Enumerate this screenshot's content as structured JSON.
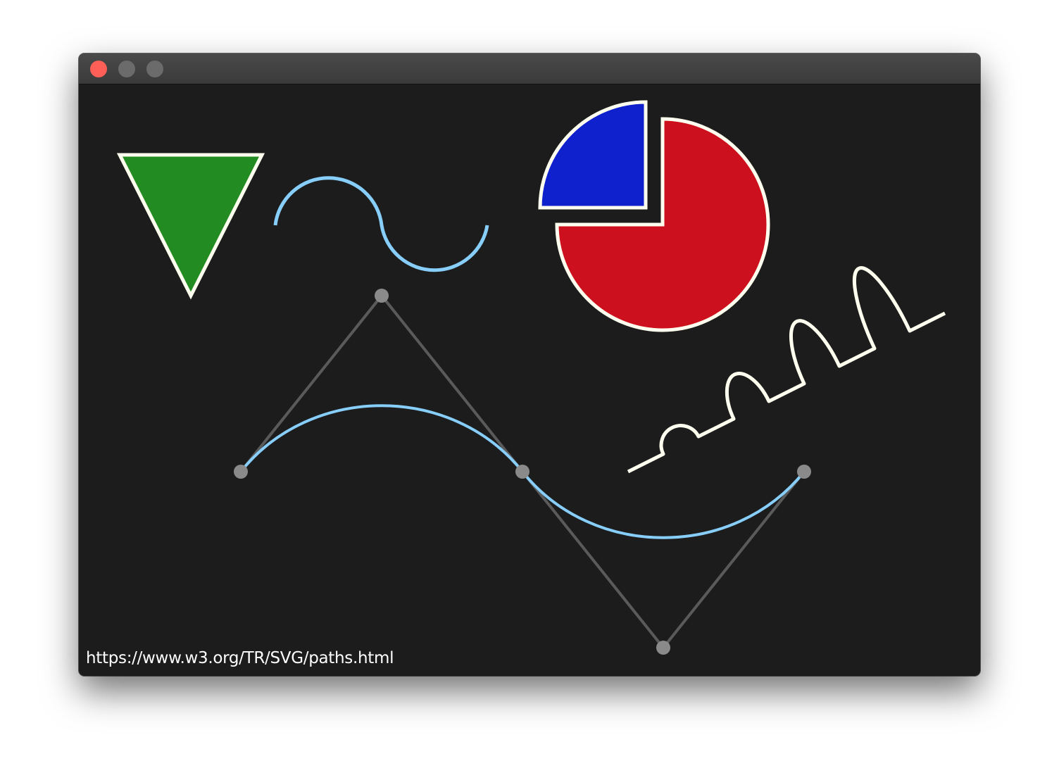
{
  "window": {
    "buttons": {
      "close_color": "#ff5f57",
      "inactive_color": "#6b6b6b"
    }
  },
  "canvas": {
    "background": "#1c1c1c",
    "footer_text": "https://www.w3.org/TR/SVG/paths.html"
  },
  "shapes": {
    "triangle": {
      "fill": "#228b22",
      "stroke": "#fffff0"
    },
    "arcs_curve": {
      "stroke": "#87cefa"
    },
    "pie": {
      "large_slice_fill": "#cd101e",
      "small_slice_fill": "#0f20cd",
      "stroke": "#fffff0"
    },
    "zigzag_bumps": {
      "stroke": "#fffff0"
    },
    "bezier": {
      "curve_stroke": "#87cefa",
      "control_line_stroke": "#5a5a5a",
      "control_point_fill": "#8a8a8a"
    }
  }
}
